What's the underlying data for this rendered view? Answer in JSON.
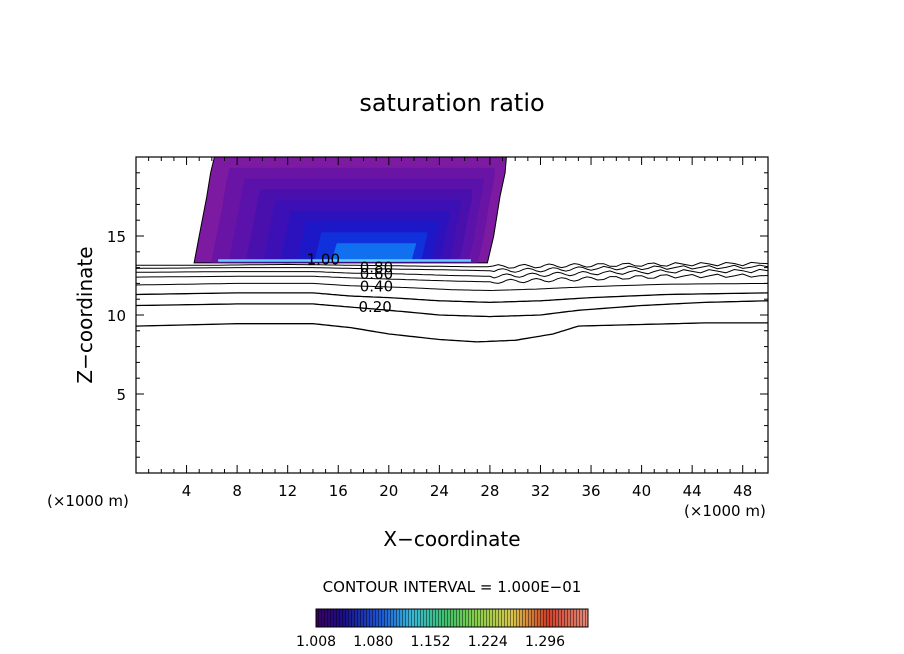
{
  "chart_data": {
    "type": "contour",
    "title": "saturation ratio",
    "xlabel": "X−coordinate",
    "ylabel": "Z−coordinate",
    "x_unit_left": "(×1000 m)",
    "x_unit_right": "(×1000 m)",
    "xlim": [
      0,
      50
    ],
    "ylim": [
      0,
      20
    ],
    "xticks": [
      4,
      8,
      12,
      16,
      20,
      24,
      28,
      32,
      36,
      40,
      44,
      48
    ],
    "yticks": [
      5,
      10,
      15
    ],
    "contour_interval_text": "CONTOUR INTERVAL = 1.000E−01",
    "contour_labels": [
      {
        "text": "1.00",
        "x": 13.5,
        "z": 13.5
      },
      {
        "text": "0.80",
        "x": 17.7,
        "z": 13.0
      },
      {
        "text": "0.60",
        "x": 17.7,
        "z": 12.6
      },
      {
        "text": "0.40",
        "x": 17.7,
        "z": 11.8
      },
      {
        "text": "0.20",
        "x": 17.6,
        "z": 10.5
      }
    ],
    "contours": [
      {
        "level": 0.2,
        "points": [
          [
            0,
            9.3
          ],
          [
            8,
            9.45
          ],
          [
            14,
            9.45
          ],
          [
            17,
            9.2
          ],
          [
            20,
            8.8
          ],
          [
            24,
            8.45
          ],
          [
            27,
            8.3
          ],
          [
            30,
            8.4
          ],
          [
            33,
            8.8
          ],
          [
            35,
            9.3
          ],
          [
            40,
            9.4
          ],
          [
            45,
            9.5
          ],
          [
            50,
            9.5
          ]
        ]
      },
      {
        "level": 0.3,
        "points": [
          [
            0,
            10.6
          ],
          [
            8,
            10.7
          ],
          [
            14,
            10.7
          ],
          [
            17,
            10.5
          ],
          [
            20,
            10.3
          ],
          [
            24,
            10.0
          ],
          [
            28,
            9.9
          ],
          [
            32,
            10.0
          ],
          [
            35,
            10.3
          ],
          [
            40,
            10.6
          ],
          [
            45,
            10.8
          ],
          [
            50,
            10.9
          ]
        ]
      },
      {
        "level": 0.4,
        "points": [
          [
            0,
            11.3
          ],
          [
            8,
            11.4
          ],
          [
            14,
            11.4
          ],
          [
            17,
            11.2
          ],
          [
            20,
            11.1
          ],
          [
            24,
            10.9
          ],
          [
            28,
            10.8
          ],
          [
            32,
            10.9
          ],
          [
            36,
            11.1
          ],
          [
            42,
            11.3
          ],
          [
            50,
            11.4
          ]
        ]
      },
      {
        "level": 0.5,
        "points": [
          [
            0,
            11.9
          ],
          [
            8,
            12.0
          ],
          [
            14,
            12.0
          ],
          [
            17,
            11.85
          ],
          [
            21,
            11.75
          ],
          [
            25,
            11.6
          ],
          [
            28,
            11.55
          ],
          [
            32,
            11.65
          ],
          [
            36,
            11.8
          ],
          [
            42,
            11.95
          ],
          [
            50,
            12.0
          ]
        ]
      },
      {
        "level": 0.6,
        "points": [
          [
            0,
            12.4
          ],
          [
            8,
            12.45
          ],
          [
            14,
            12.45
          ],
          [
            17,
            12.35
          ],
          [
            21,
            12.25
          ],
          [
            25,
            12.15
          ],
          [
            28,
            12.1
          ],
          [
            32,
            12.2
          ],
          [
            36,
            12.3
          ],
          [
            42,
            12.45
          ],
          [
            50,
            12.5
          ]
        ]
      },
      {
        "level": 0.7,
        "points": [
          [
            0,
            12.7
          ],
          [
            8,
            12.75
          ],
          [
            14,
            12.75
          ],
          [
            17,
            12.65
          ],
          [
            21,
            12.6
          ],
          [
            25,
            12.5
          ],
          [
            28,
            12.45
          ],
          [
            32,
            12.55
          ],
          [
            36,
            12.65
          ],
          [
            42,
            12.75
          ],
          [
            50,
            12.8
          ]
        ]
      },
      {
        "level": 0.8,
        "points": [
          [
            0,
            12.95
          ],
          [
            8,
            13.0
          ],
          [
            14,
            13.0
          ],
          [
            17,
            12.95
          ],
          [
            21,
            12.9
          ],
          [
            25,
            12.85
          ],
          [
            28,
            12.8
          ],
          [
            32,
            12.85
          ],
          [
            36,
            12.95
          ],
          [
            42,
            13.0
          ],
          [
            50,
            13.05
          ]
        ]
      },
      {
        "level": 0.9,
        "points": [
          [
            0,
            13.15
          ],
          [
            6,
            13.15
          ],
          [
            12,
            13.2
          ],
          [
            17,
            13.15
          ],
          [
            22,
            13.1
          ],
          [
            27,
            13.05
          ],
          [
            32,
            13.1
          ],
          [
            36,
            13.15
          ],
          [
            42,
            13.2
          ],
          [
            50,
            13.25
          ]
        ]
      }
    ],
    "supersat_region": {
      "boundary": [
        [
          6.2,
          20
        ],
        [
          5.9,
          19
        ],
        [
          5.6,
          17.5
        ],
        [
          5.0,
          15
        ],
        [
          4.6,
          13.3
        ],
        [
          27.8,
          13.3
        ],
        [
          28.3,
          15
        ],
        [
          28.8,
          17.5
        ],
        [
          29.2,
          19
        ],
        [
          29.3,
          20
        ]
      ],
      "fill_bands": [
        {
          "value": 1.008,
          "color": "#7c1aa2"
        },
        {
          "value": 1.02,
          "color": "#6a14a6"
        },
        {
          "value": 1.035,
          "color": "#5a12aa"
        },
        {
          "value": 1.05,
          "color": "#4a10ae"
        },
        {
          "value": 1.065,
          "color": "#3c10b4"
        },
        {
          "value": 1.08,
          "color": "#2c12bc"
        },
        {
          "value": 1.1,
          "color": "#1c18c8"
        },
        {
          "value": 1.12,
          "color": "#1030dc"
        },
        {
          "value": 1.14,
          "color": "#1070f0"
        }
      ],
      "peak_x": 19.5,
      "peak_z": 13.4
    },
    "colorbar": {
      "ticks": [
        "1.008",
        "1.080",
        "1.152",
        "1.224",
        "1.296"
      ],
      "min": 1.008,
      "max": 1.35,
      "stops": [
        {
          "v": 0.0,
          "c": "#3a0060"
        },
        {
          "v": 0.1,
          "c": "#1a0e8a"
        },
        {
          "v": 0.25,
          "c": "#1e5fd8"
        },
        {
          "v": 0.35,
          "c": "#37b7d8"
        },
        {
          "v": 0.48,
          "c": "#3fc26a"
        },
        {
          "v": 0.6,
          "c": "#8fcf4a"
        },
        {
          "v": 0.72,
          "c": "#d7c64a"
        },
        {
          "v": 0.85,
          "c": "#d0402a"
        },
        {
          "v": 1.0,
          "c": "#e58a7a"
        }
      ]
    }
  }
}
